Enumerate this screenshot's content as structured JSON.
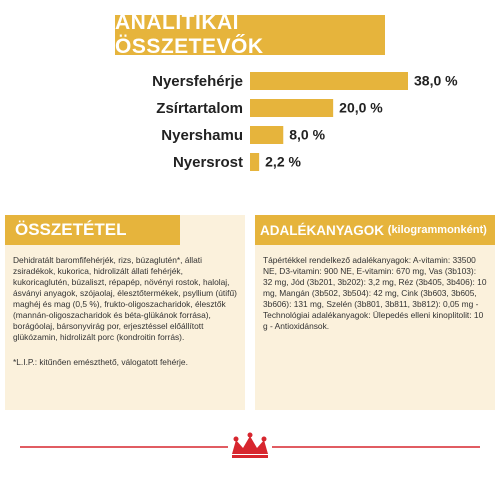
{
  "header": {
    "title": "ANALITIKAI ÖSSZETEVŐK"
  },
  "chart_data": {
    "type": "bar",
    "categories": [
      "Nyersfehérje",
      "Zsírtartalom",
      "Nyershamu",
      "Nyersrost"
    ],
    "values": [
      38.0,
      20.0,
      8.0,
      2.2
    ],
    "value_labels": [
      "38,0 %",
      "20,0 %",
      "8,0 %",
      "2,2 %"
    ],
    "color": "#e6b43c"
  },
  "composition": {
    "title": "ÖSSZETÉTEL",
    "text": "Dehidratált baromfifehérjék, rizs, búzaglutén*, állati zsiradékok, kukorica, hidrolizált állati fehérjék, kukoricaglutén, búzaliszt, répapép, növényi rostok, halolaj, ásványi anyagok, szójaolaj, élesztőtermékek, psyllium (útifű) maghéj és mag (0,5 %), frukto-oligoszacharidok, élesztők (mannán-oligoszacharidok és béta-glükánok forrása), borágóolaj, bársonyvirág por, erjesztéssel előállított glükózamin, hidrolizált porc (kondroitin forrás).",
    "note": "*L.I.P.: kitűnően emészthető, válogatott fehérje."
  },
  "additives": {
    "title": "ADALÉKANYAGOK",
    "subtitle": "(kilogrammonként)",
    "text": "Tápértékkel rendelkező adalékanyagok: A-vitamin: 33500 NE, D3-vitamin: 900 NE, E-vitamin: 670 mg, Vas (3b103): 32 mg, Jód (3b201, 3b202): 3,2 mg, Réz (3b405, 3b406): 10 mg, Mangán (3b502, 3b504): 42 mg, Cink (3b603, 3b605, 3b606): 131 mg, Szelén (3b801, 3b811, 3b812): 0,05 mg - Technológiai adalékanyagok: Ülepedés elleni kinoplitolit: 10 g - Antioxidánsok."
  }
}
